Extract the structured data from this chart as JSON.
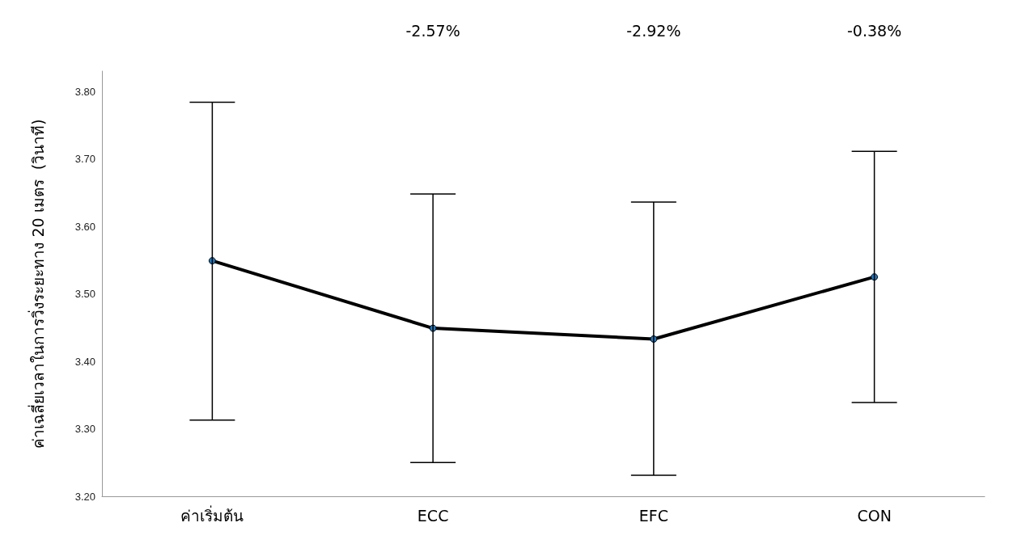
{
  "chart_data": {
    "type": "line",
    "ylabel": "ค่าเฉลี่ยเวลาในการวิ่งระยะทาง 20 เมตร  (วินาที)",
    "categories": [
      "ค่าเริ่มต้น",
      "ECC",
      "EFC",
      "CON"
    ],
    "color": "#000000",
    "colors": [
      "#1f78c1",
      "#1f78c1",
      "#1f78c1",
      "#1f78c1"
    ],
    "values": [
      3.549,
      3.449,
      3.433,
      3.525
    ],
    "errors": [
      [
        3.313,
        3.784
      ],
      [
        3.25,
        3.648
      ],
      [
        3.231,
        3.636
      ],
      [
        3.339,
        3.711
      ]
    ],
    "ylim": [
      3.2,
      3.83
    ],
    "yticks": [
      {
        "value": 3.2,
        "label": "3.20"
      },
      {
        "value": 3.3,
        "label": "3.30"
      },
      {
        "value": 3.4,
        "label": "3.40"
      },
      {
        "value": 3.5,
        "label": "3.50"
      },
      {
        "value": 3.6,
        "label": "3.60"
      },
      {
        "value": 3.7,
        "label": "3.70"
      },
      {
        "value": 3.8,
        "label": "3.80"
      }
    ],
    "annotations": [
      "-2.57%",
      "-2.92%",
      "-0.38%"
    ],
    "marker": "circle",
    "line_style": "solid",
    "grid": false
  }
}
